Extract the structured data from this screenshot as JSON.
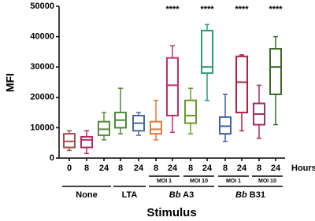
{
  "chart_data": {
    "type": "box",
    "y_label": "MFI",
    "x_label": "Stimulus",
    "x_unit": "Hours",
    "ylim": [
      0,
      50000
    ],
    "yticks": [
      0,
      10000,
      20000,
      30000,
      40000,
      50000
    ],
    "boxes": [
      {
        "label": "0",
        "color": "#a3504a",
        "min": 2500,
        "q1": 3500,
        "median": 5500,
        "q3": 8000,
        "max": 9000
      },
      {
        "label": "8",
        "color": "#b0306a",
        "min": 1500,
        "q1": 3500,
        "median": 6000,
        "q3": 7000,
        "max": 9000
      },
      {
        "label": "24",
        "color": "#5c8a3c",
        "min": 6000,
        "q1": 7500,
        "median": 9500,
        "q3": 12000,
        "max": 15000
      },
      {
        "label": "8",
        "color": "#4a8c3a",
        "min": 8000,
        "q1": 10000,
        "median": 12500,
        "q3": 15000,
        "max": 23000
      },
      {
        "label": "24",
        "color": "#4a6a9a",
        "min": 7500,
        "q1": 9000,
        "median": 11500,
        "q3": 14000,
        "max": 15000
      },
      {
        "label": "8",
        "color": "#e07a3a",
        "min": 6000,
        "q1": 8000,
        "median": 9500,
        "q3": 12000,
        "max": 19000
      },
      {
        "label": "24",
        "color": "#c0306a",
        "min": 8500,
        "q1": 14000,
        "median": 24000,
        "q3": 33000,
        "max": 37000,
        "annotation": "****"
      },
      {
        "label": "8",
        "color": "#6a9a2a",
        "min": 8000,
        "q1": 11500,
        "median": 14000,
        "q3": 19000,
        "max": 23000
      },
      {
        "label": "24",
        "color": "#2a9a7a",
        "min": 19000,
        "q1": 28000,
        "median": 30000,
        "q3": 42000,
        "max": 44000,
        "annotation": "****"
      },
      {
        "label": "8",
        "color": "#3a60b0",
        "min": 5500,
        "q1": 8000,
        "median": 10500,
        "q3": 13500,
        "max": 21000
      },
      {
        "label": "24",
        "color": "#b02040",
        "min": 9000,
        "q1": 15000,
        "median": 25000,
        "q3": 33500,
        "max": 34000,
        "annotation": "****"
      },
      {
        "label": "8",
        "color": "#a03060",
        "min": 6500,
        "q1": 11000,
        "median": 14500,
        "q3": 18000,
        "max": 24000
      },
      {
        "label": "24",
        "color": "#3a6a20",
        "min": 11000,
        "q1": 21000,
        "median": 30000,
        "q3": 36000,
        "max": 40000,
        "annotation": "****"
      }
    ],
    "subgroups": [
      "MOI 1",
      "MOI 10",
      "MOI 1",
      "MOI 10"
    ],
    "groups": [
      {
        "name": "None"
      },
      {
        "name": "LTA"
      },
      {
        "species": "Bb",
        "name": "A3"
      },
      {
        "species": "Bb",
        "name": "B31"
      }
    ]
  }
}
